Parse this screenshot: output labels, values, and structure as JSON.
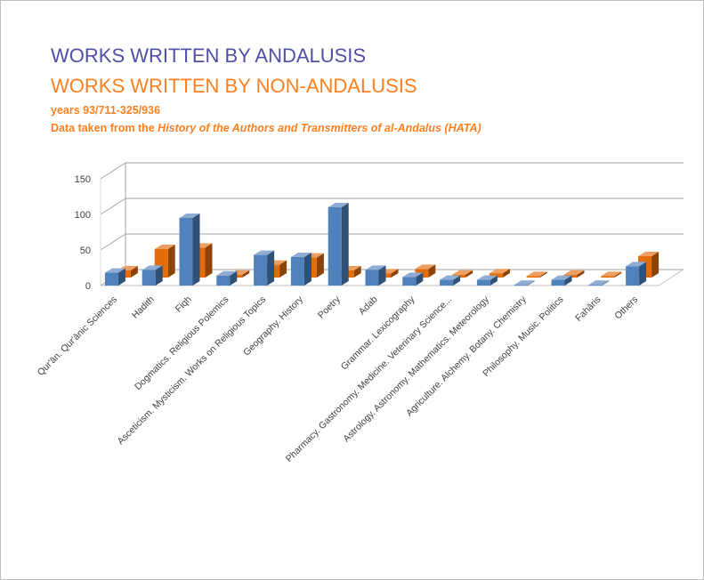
{
  "title_andalusis": "WORKS WRITTEN BY ANDALUSIS",
  "title_non_andalusis": "WORKS WRITTEN BY NON-ANDALUSIS",
  "subtitle_years": "years 93/711-325/936",
  "subtitle_source_prefix": "Data taken from the ",
  "subtitle_source_title": "History of the Authors and Transmitters of al-Andalus (HATA)",
  "chart_data": {
    "type": "bar",
    "categories": [
      "Qur'ān. Qur'ānic Sciences",
      "Hadith",
      "Fiqh",
      "Dogmatics. Religious Polemics",
      "Asceticism. Mysticism. Works on Religious Topics",
      "Geography. History",
      "Poetry",
      "Adab",
      "Grammar. Lexicography",
      "Pharmacy. Gastronomy. Medicine. Veterinary Science...",
      "Astrology. Astronomy. Mathematics. Meteorology",
      "Agriculture. Alchemy. Botany. Chemistry",
      "Philosophy. Music. Politics",
      "Fahāris",
      "Others"
    ],
    "series": [
      {
        "name": "WORKS WRITTEN BY ANDALUSIS",
        "color": "#4f81bd",
        "values": [
          18,
          22,
          95,
          14,
          43,
          40,
          110,
          22,
          12,
          8,
          8,
          1,
          8,
          1,
          27
        ]
      },
      {
        "name": "WORKS WRITTEN BY NON-ANDALUSIS",
        "color": "#e46c0a",
        "values": [
          10,
          40,
          42,
          4,
          18,
          28,
          10,
          6,
          12,
          4,
          6,
          2,
          4,
          2,
          30
        ]
      }
    ],
    "yticks": [
      "0",
      "50",
      "100",
      "150"
    ],
    "ylim": [
      0,
      150
    ],
    "grid": true,
    "legend": "none"
  }
}
